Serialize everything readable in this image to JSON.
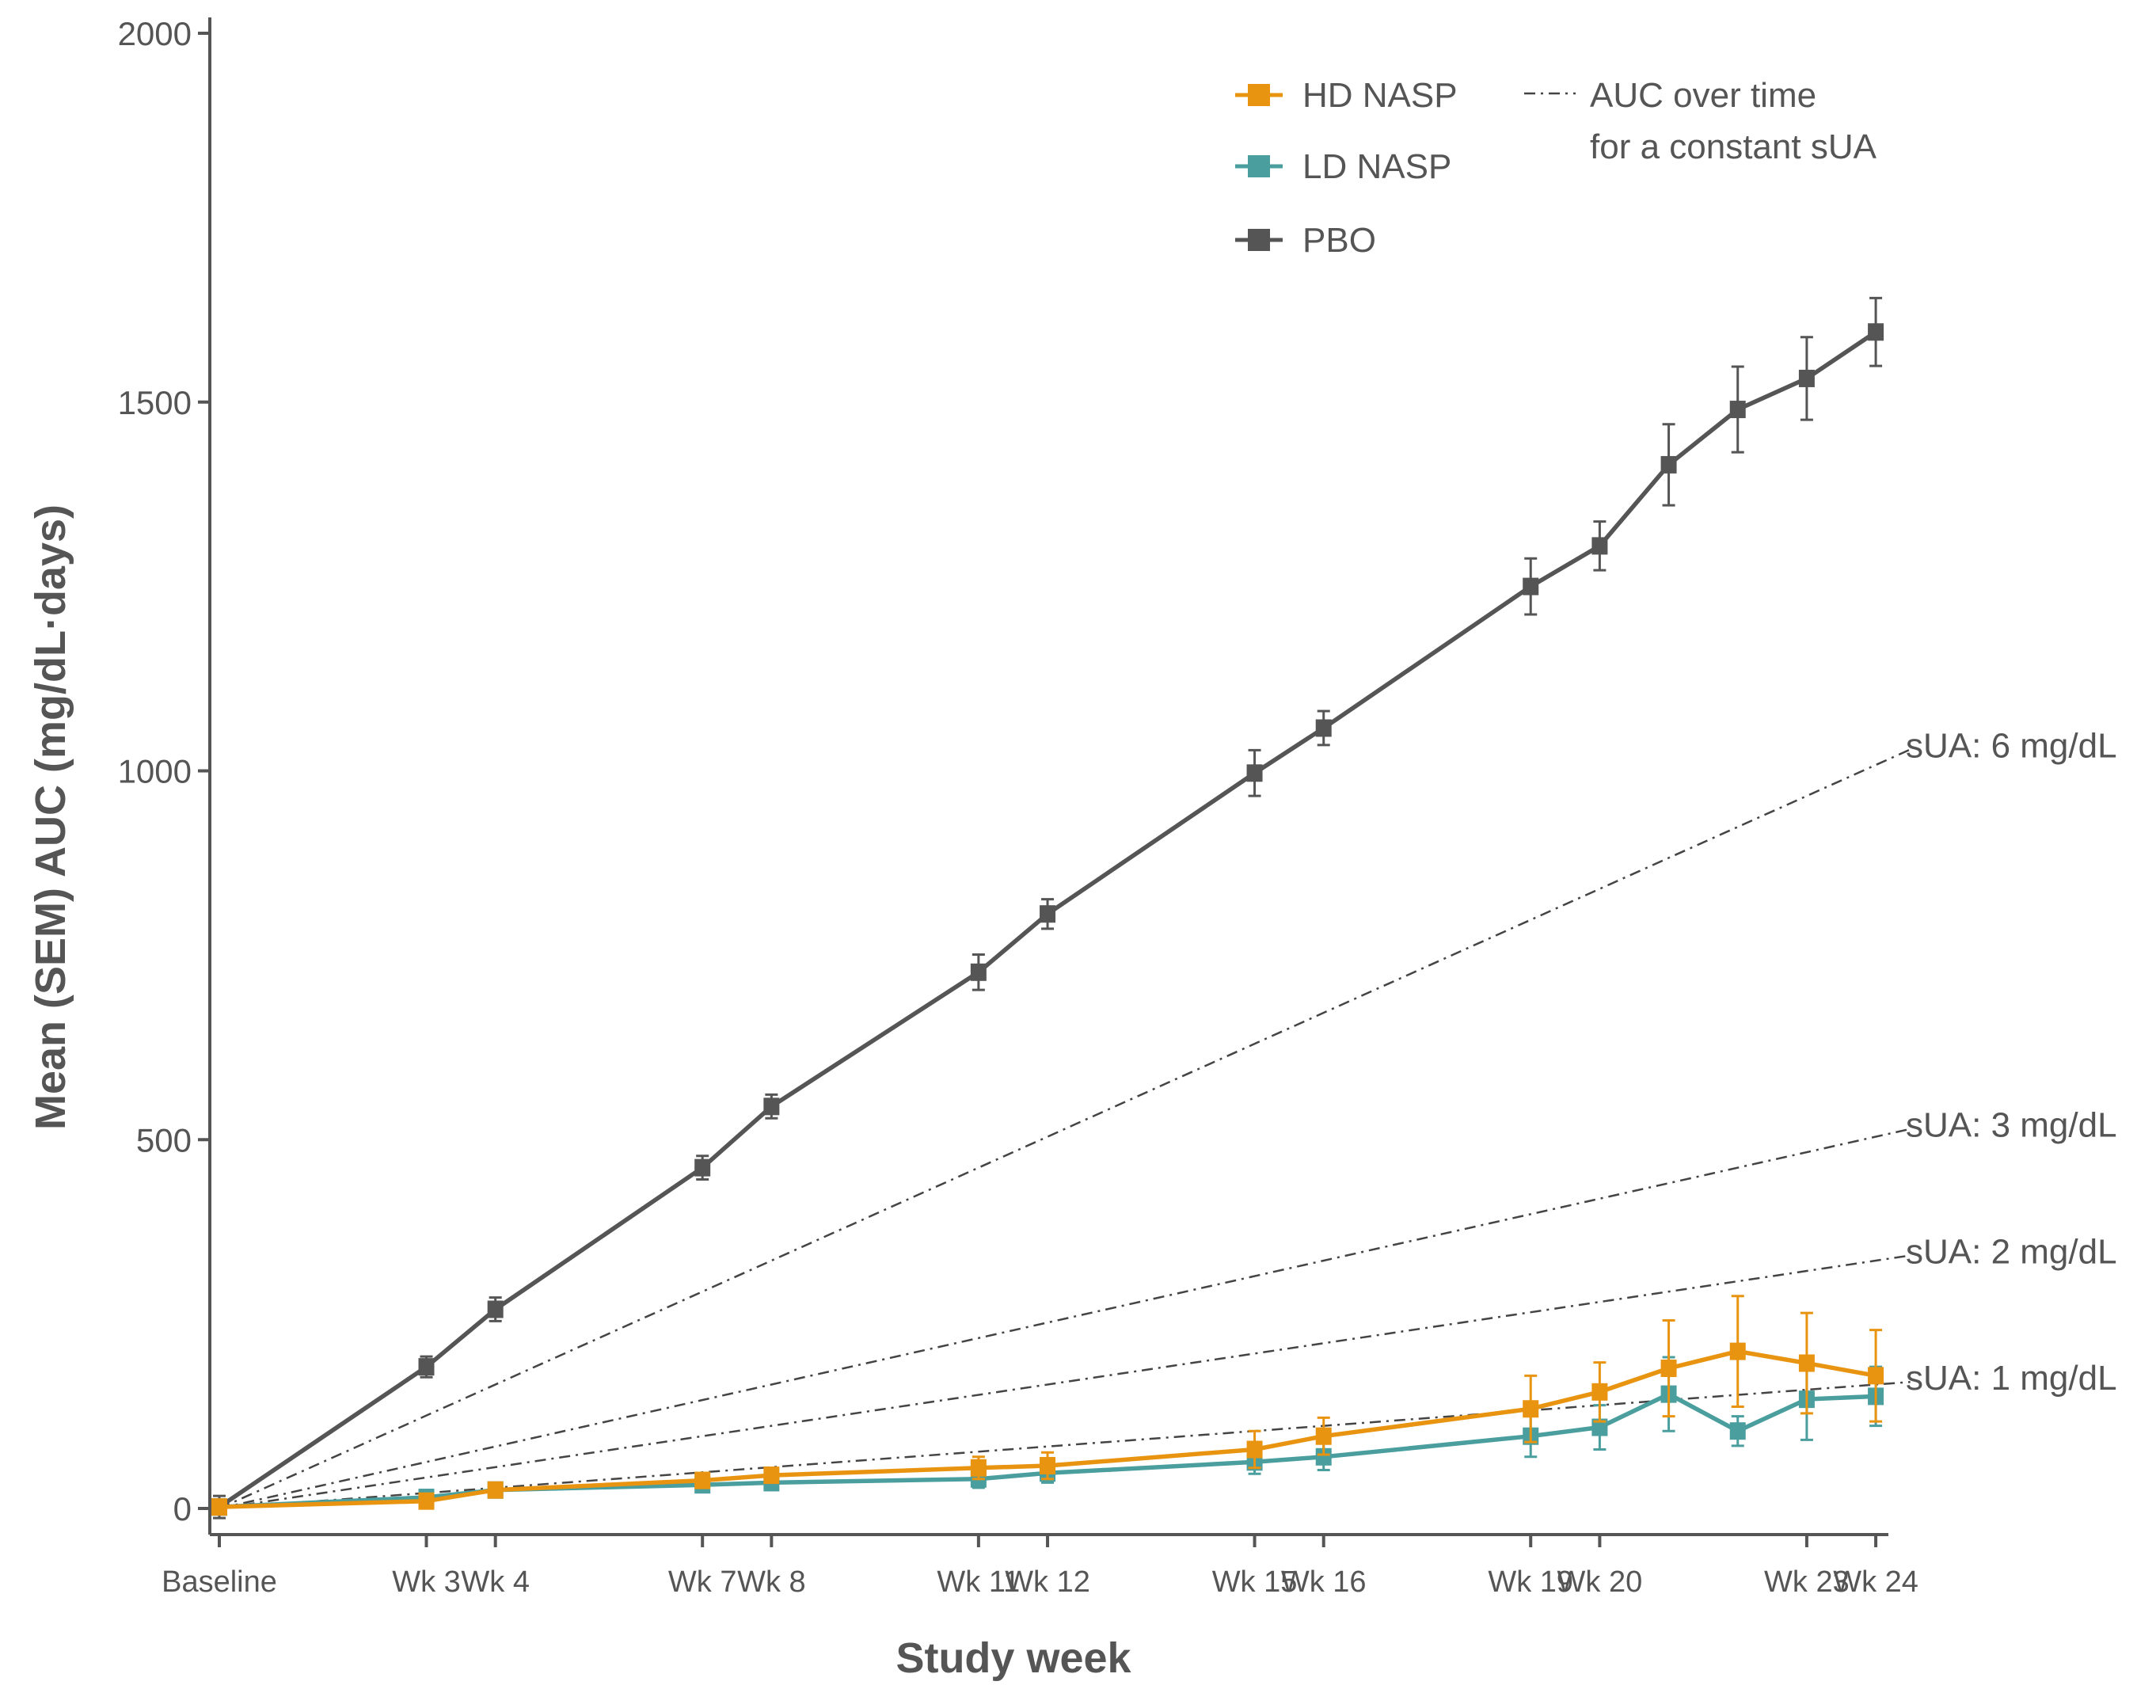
{
  "chart_data": {
    "type": "line",
    "xlabel": "Study week",
    "ylabel": "Mean (SEM) AUC (mg/dL·days)",
    "ylim": [
      0,
      2000
    ],
    "yticks": [
      0,
      500,
      1000,
      1500,
      2000
    ],
    "xlim": [
      0,
      24
    ],
    "xticks": [
      {
        "week": 0,
        "label": "Baseline"
      },
      {
        "week": 3,
        "label": "Wk 3"
      },
      {
        "week": 4,
        "label": "Wk 4"
      },
      {
        "week": 7,
        "label": "Wk 7"
      },
      {
        "week": 8,
        "label": "Wk 8"
      },
      {
        "week": 11,
        "label": "Wk 11"
      },
      {
        "week": 12,
        "label": "Wk 12"
      },
      {
        "week": 15,
        "label": "Wk 15"
      },
      {
        "week": 16,
        "label": "Wk 16"
      },
      {
        "week": 19,
        "label": "Wk 19"
      },
      {
        "week": 20,
        "label": "Wk 20"
      },
      {
        "week": 23,
        "label": "Wk 23"
      },
      {
        "week": 24,
        "label": "Wk 24"
      }
    ],
    "series": [
      {
        "name": "PBO",
        "color": "#555555",
        "points": [
          {
            "x": 0,
            "y": 2,
            "err": 15
          },
          {
            "x": 3,
            "y": 192,
            "err": 14
          },
          {
            "x": 4,
            "y": 270,
            "err": 16
          },
          {
            "x": 7,
            "y": 462,
            "err": 16
          },
          {
            "x": 8,
            "y": 545,
            "err": 16
          },
          {
            "x": 11,
            "y": 727,
            "err": 24
          },
          {
            "x": 12,
            "y": 806,
            "err": 20
          },
          {
            "x": 15,
            "y": 997,
            "err": 31
          },
          {
            "x": 16,
            "y": 1058,
            "err": 23
          },
          {
            "x": 19,
            "y": 1250,
            "err": 38
          },
          {
            "x": 20,
            "y": 1305,
            "err": 33
          },
          {
            "x": 21,
            "y": 1415,
            "err": 55
          },
          {
            "x": 22,
            "y": 1490,
            "err": 58
          },
          {
            "x": 23,
            "y": 1532,
            "err": 56
          },
          {
            "x": 24,
            "y": 1595,
            "err": 46
          }
        ]
      },
      {
        "name": "LD NASP",
        "color": "#4a9e9e",
        "points": [
          {
            "x": 0,
            "y": 2,
            "err": 6
          },
          {
            "x": 3,
            "y": 15,
            "err": 6
          },
          {
            "x": 4,
            "y": 25,
            "err": 6
          },
          {
            "x": 7,
            "y": 32,
            "err": 10
          },
          {
            "x": 8,
            "y": 35,
            "err": 10
          },
          {
            "x": 11,
            "y": 40,
            "err": 12
          },
          {
            "x": 12,
            "y": 48,
            "err": 13
          },
          {
            "x": 15,
            "y": 63,
            "err": 16
          },
          {
            "x": 16,
            "y": 70,
            "err": 18
          },
          {
            "x": 19,
            "y": 98,
            "err": 28
          },
          {
            "x": 20,
            "y": 110,
            "err": 30
          },
          {
            "x": 21,
            "y": 155,
            "err": 50
          },
          {
            "x": 22,
            "y": 105,
            "err": 20
          },
          {
            "x": 23,
            "y": 148,
            "err": 55
          },
          {
            "x": 24,
            "y": 152,
            "err": 40
          }
        ]
      },
      {
        "name": "HD NASP",
        "color": "#e89410",
        "points": [
          {
            "x": 0,
            "y": 2,
            "err": 5
          },
          {
            "x": 3,
            "y": 10,
            "err": 8
          },
          {
            "x": 4,
            "y": 25,
            "err": 8
          },
          {
            "x": 7,
            "y": 38,
            "err": 10
          },
          {
            "x": 8,
            "y": 45,
            "err": 10
          },
          {
            "x": 11,
            "y": 55,
            "err": 15
          },
          {
            "x": 12,
            "y": 58,
            "err": 18
          },
          {
            "x": 15,
            "y": 80,
            "err": 25
          },
          {
            "x": 16,
            "y": 98,
            "err": 25
          },
          {
            "x": 19,
            "y": 135,
            "err": 45
          },
          {
            "x": 20,
            "y": 158,
            "err": 40
          },
          {
            "x": 21,
            "y": 190,
            "err": 65
          },
          {
            "x": 22,
            "y": 213,
            "err": 75
          },
          {
            "x": 23,
            "y": 197,
            "err": 68
          },
          {
            "x": 24,
            "y": 180,
            "err": 62
          }
        ]
      }
    ],
    "reference_lines": [
      {
        "label": "sUA: 6 mg/dL",
        "sUA": 6
      },
      {
        "label": "sUA: 3 mg/dL",
        "sUA": 3
      },
      {
        "label": "sUA: 2 mg/dL",
        "sUA": 2
      },
      {
        "label": "sUA: 1 mg/dL",
        "sUA": 1
      }
    ],
    "legend": {
      "placement": "top-right",
      "items": [
        {
          "label": "HD NASP",
          "color": "#e89410"
        },
        {
          "label": "LD NASP",
          "color": "#4a9e9e"
        },
        {
          "label": "PBO",
          "color": "#555555"
        }
      ],
      "ref_line_label_1": "AUC over time",
      "ref_line_label_2": "for a constant sUA"
    }
  }
}
